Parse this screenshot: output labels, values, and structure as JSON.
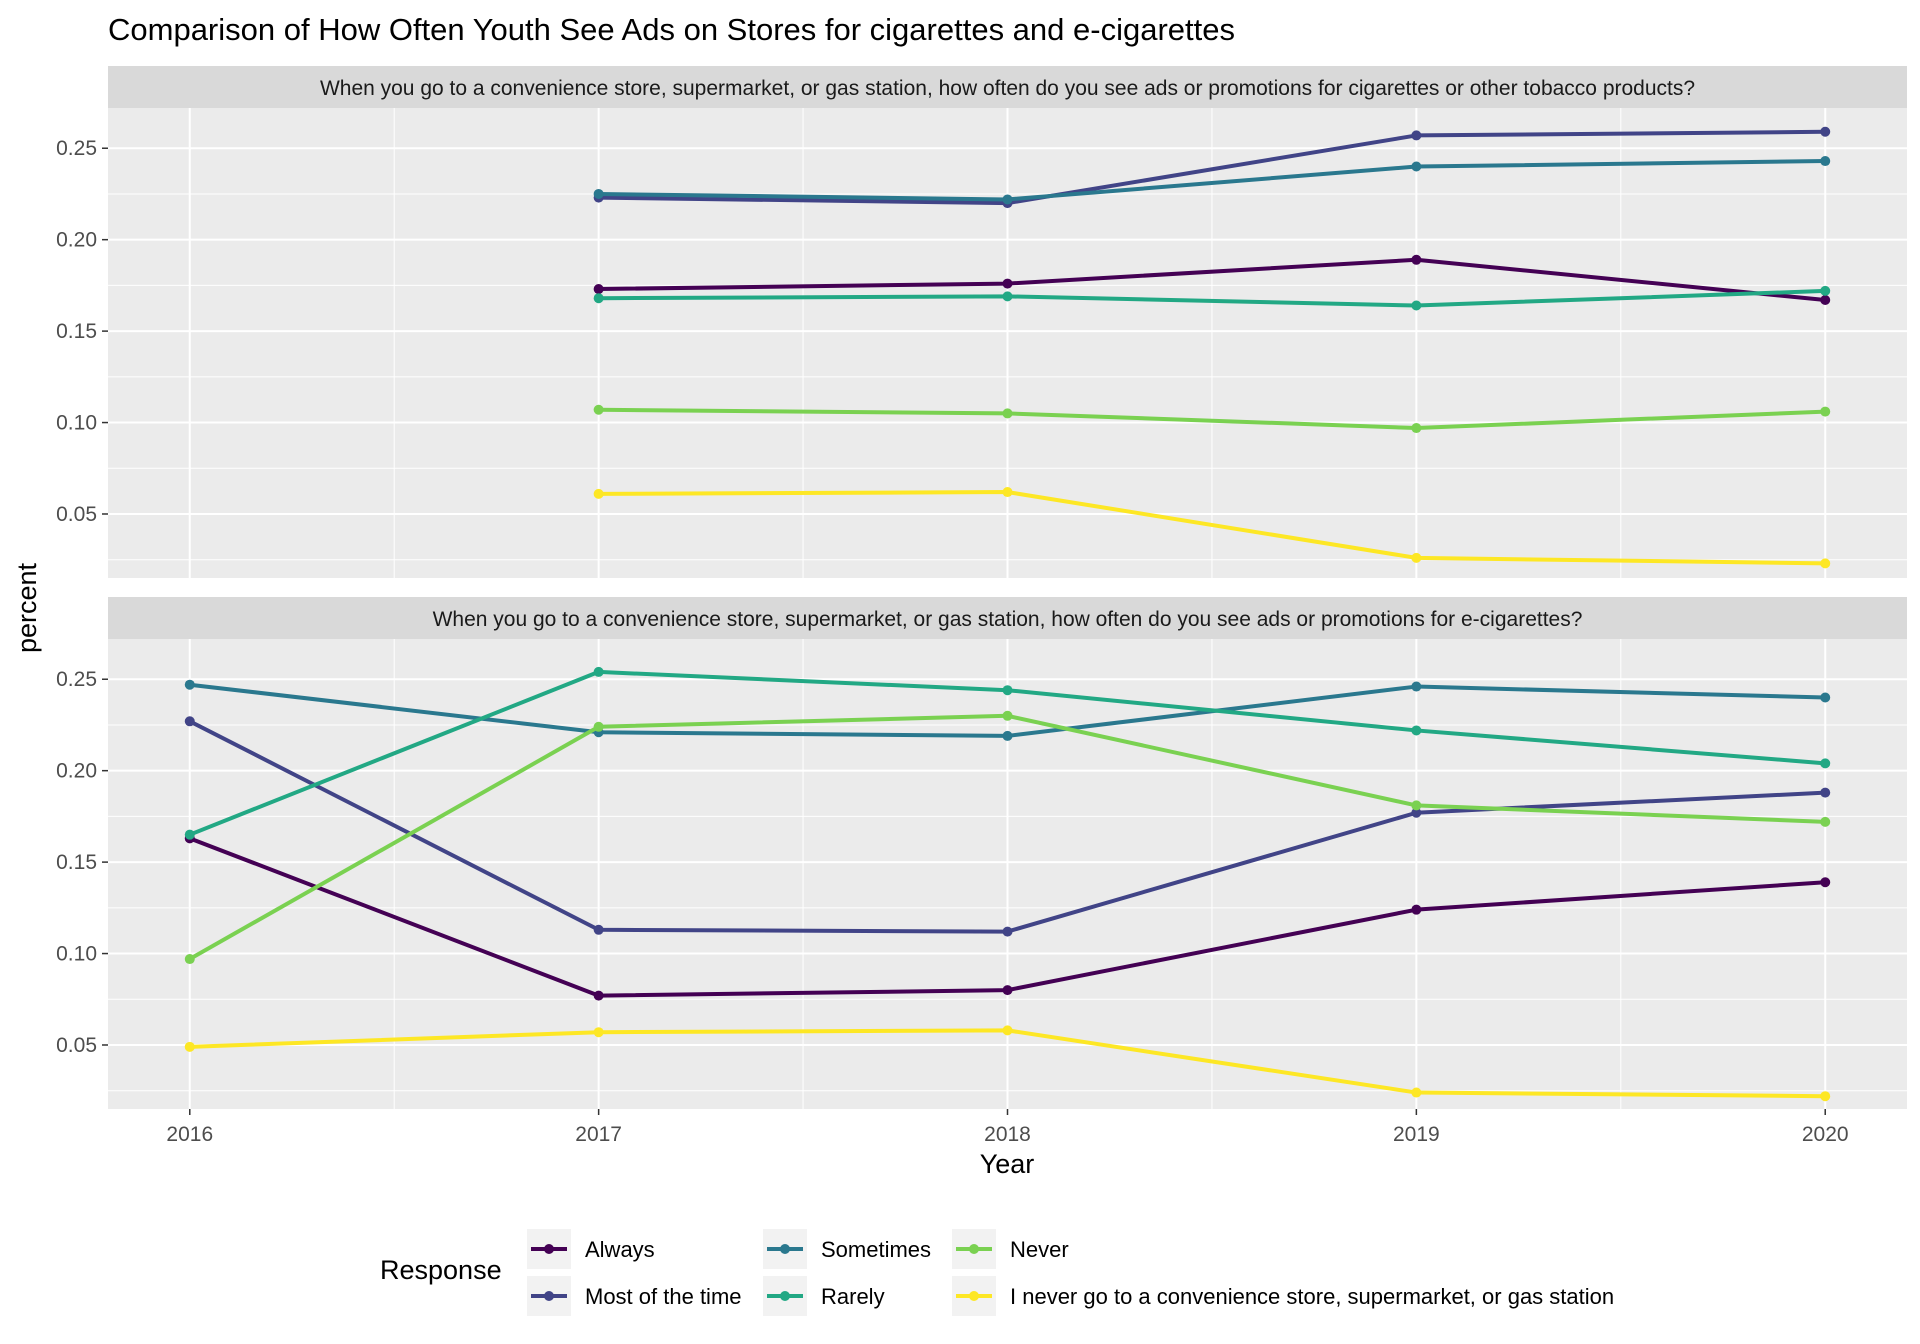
{
  "chart_data": {
    "type": "line",
    "title": "Comparison of How Often Youth See Ads on Stores for cigarettes and e-cigarettes",
    "xlabel": "Year",
    "ylabel": "percent",
    "x": [
      2016,
      2017,
      2018,
      2019,
      2020
    ],
    "x_tick_labels": [
      "2016",
      "2017",
      "2018",
      "2019",
      "2020"
    ],
    "xlim": [
      2015.8,
      2020.2
    ],
    "ylim": [
      0.015,
      0.272
    ],
    "y_ticks": [
      0.05,
      0.1,
      0.15,
      0.2,
      0.25
    ],
    "y_tick_labels": [
      "0.05",
      "0.10",
      "0.15",
      "0.20",
      "0.25"
    ],
    "grid": true,
    "legend": {
      "title": "Response",
      "position": "bottom",
      "entries": [
        {
          "name": "Always",
          "color": "#440154"
        },
        {
          "name": "Most of the time",
          "color": "#414487"
        },
        {
          "name": "Sometimes",
          "color": "#2A788E"
        },
        {
          "name": "Rarely",
          "color": "#22A884"
        },
        {
          "name": "Never",
          "color": "#7AD151"
        },
        {
          "name": "I never go to a convenience store, supermarket, or gas station",
          "color": "#FDE725"
        }
      ]
    },
    "panels": [
      {
        "strip": "When you go to a convenience store, supermarket, or gas station, how often do you see ads or promotions for cigarettes or other tobacco products?",
        "series": [
          {
            "name": "Always",
            "values": [
              null,
              0.173,
              0.176,
              0.189,
              0.167
            ]
          },
          {
            "name": "Most of the time",
            "values": [
              null,
              0.223,
              0.22,
              0.257,
              0.259
            ]
          },
          {
            "name": "Sometimes",
            "values": [
              null,
              0.225,
              0.222,
              0.24,
              0.243
            ]
          },
          {
            "name": "Rarely",
            "values": [
              null,
              0.168,
              0.169,
              0.164,
              0.172
            ]
          },
          {
            "name": "Never",
            "values": [
              null,
              0.107,
              0.105,
              0.097,
              0.106
            ]
          },
          {
            "name": "I never go to a convenience store, supermarket, or gas station",
            "values": [
              null,
              0.061,
              0.062,
              0.026,
              0.023
            ]
          }
        ]
      },
      {
        "strip": "When you go to a convenience store, supermarket, or gas station, how often do you see ads or promotions for e-cigarettes?",
        "series": [
          {
            "name": "Always",
            "values": [
              0.163,
              0.077,
              0.08,
              0.124,
              0.139
            ]
          },
          {
            "name": "Most of the time",
            "values": [
              0.227,
              0.113,
              0.112,
              0.177,
              0.188
            ]
          },
          {
            "name": "Sometimes",
            "values": [
              0.247,
              0.221,
              0.219,
              0.246,
              0.24
            ]
          },
          {
            "name": "Rarely",
            "values": [
              0.165,
              0.254,
              0.244,
              0.222,
              0.204
            ]
          },
          {
            "name": "Never",
            "values": [
              0.097,
              0.224,
              0.23,
              0.181,
              0.172
            ]
          },
          {
            "name": "I never go to a convenience store, supermarket, or gas station",
            "values": [
              0.049,
              0.057,
              0.058,
              0.024,
              0.022
            ]
          }
        ]
      }
    ]
  }
}
